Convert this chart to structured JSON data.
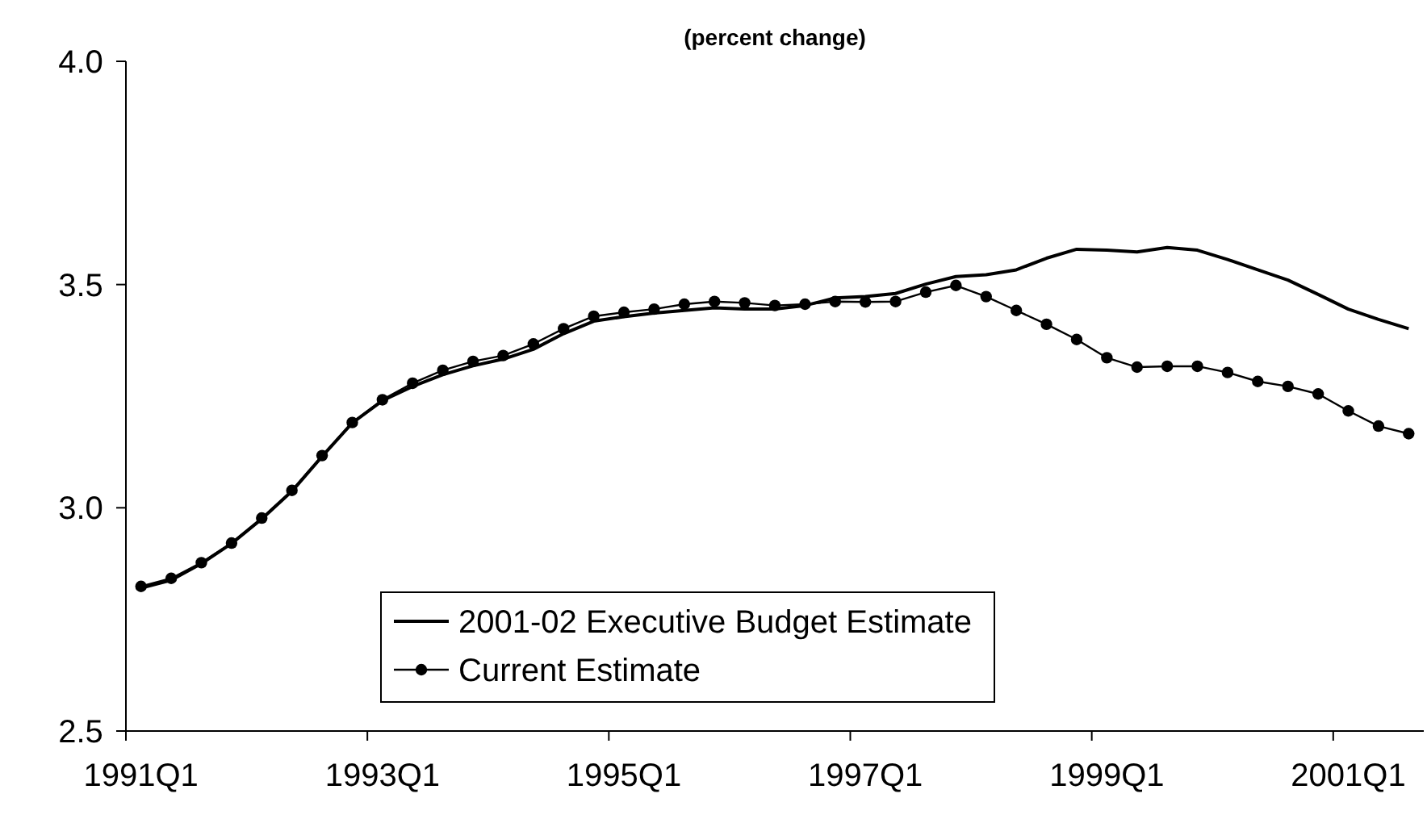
{
  "chart_data": {
    "type": "line",
    "subtitle": "(percent change)",
    "categories": [
      "1991Q1",
      null,
      null,
      null,
      null,
      null,
      null,
      null,
      "1993Q1",
      null,
      null,
      null,
      null,
      null,
      null,
      null,
      "1995Q1",
      null,
      null,
      null,
      null,
      null,
      null,
      null,
      "1997Q1",
      null,
      null,
      null,
      null,
      null,
      null,
      null,
      "1999Q1",
      null,
      null,
      null,
      null,
      null,
      null,
      null,
      "2001Q1",
      null,
      null
    ],
    "series": [
      {
        "name": "2001-02 Executive Budget Estimate",
        "color": "#000000",
        "marker": "none",
        "values": [
          2.82,
          2.838,
          2.875,
          2.92,
          2.975,
          3.037,
          3.115,
          3.19,
          3.24,
          3.272,
          3.298,
          3.318,
          3.333,
          3.355,
          3.39,
          3.418,
          3.428,
          3.436,
          3.442,
          3.448,
          3.445,
          3.445,
          3.453,
          3.47,
          3.473,
          3.48,
          3.501,
          3.518,
          3.522,
          3.533,
          3.559,
          3.579,
          3.577,
          3.573,
          3.583,
          3.577,
          3.556,
          3.533,
          3.51,
          3.478,
          3.445,
          3.422,
          3.401
        ]
      },
      {
        "name": "Current Estimate",
        "color": "#000000",
        "marker": "circle",
        "values": [
          2.824,
          2.842,
          2.877,
          2.921,
          2.977,
          3.039,
          3.117,
          3.191,
          3.242,
          3.279,
          3.308,
          3.328,
          3.341,
          3.367,
          3.401,
          3.429,
          3.438,
          3.445,
          3.456,
          3.462,
          3.459,
          3.453,
          3.456,
          3.462,
          3.461,
          3.462,
          3.483,
          3.498,
          3.473,
          3.442,
          3.411,
          3.377,
          3.336,
          3.315,
          3.317,
          3.317,
          3.303,
          3.283,
          3.272,
          3.255,
          3.217,
          3.183,
          3.166
        ]
      }
    ],
    "ylim": [
      2.5,
      4.0
    ],
    "yticks": [
      {
        "value": 2.5,
        "label": "2.5"
      },
      {
        "value": 3.0,
        "label": "3.0"
      },
      {
        "value": 3.5,
        "label": "3.5"
      },
      {
        "value": 4.0,
        "label": "4.0"
      }
    ],
    "grid": false,
    "legend": "bottom",
    "line_style": "solid"
  }
}
